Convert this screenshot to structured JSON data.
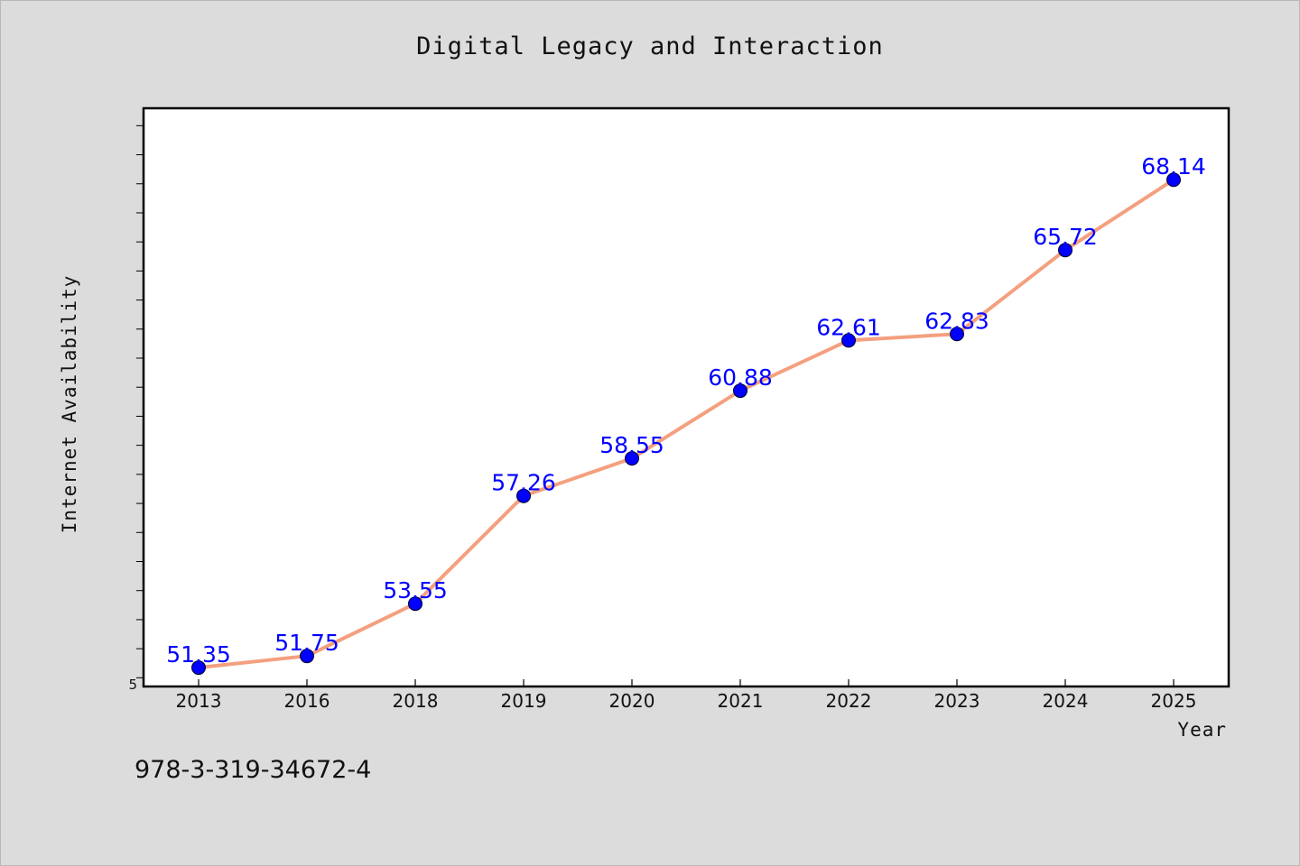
{
  "chart_data": {
    "type": "line",
    "title": "Digital Legacy and Interaction",
    "xlabel": "Year",
    "ylabel": "Internet Availability",
    "y_origin_label": "5",
    "categories": [
      "2013",
      "2016",
      "2018",
      "2019",
      "2020",
      "2021",
      "2022",
      "2023",
      "2024",
      "2025"
    ],
    "series": [
      {
        "values": [
          51.35,
          51.75,
          53.55,
          57.26,
          58.55,
          60.88,
          62.61,
          62.83,
          65.72,
          68.14
        ],
        "labels": [
          "51.35",
          "51.75",
          "53.55",
          "57.26",
          "58.55",
          "60.88",
          "62.61",
          "62.83",
          "65.72",
          "68.14"
        ],
        "line_color": "#f4a07f",
        "marker_color": "#0000ff"
      }
    ],
    "ylim": [
      50.7,
      70.6
    ],
    "y_minor_tick_step": 1,
    "grid": false,
    "legend": "none"
  },
  "footnote": "978-3-319-34672-4",
  "colors": {
    "background": "#dcdcdc",
    "plot_area": "#ffffff",
    "data_label": "#0000ff"
  }
}
